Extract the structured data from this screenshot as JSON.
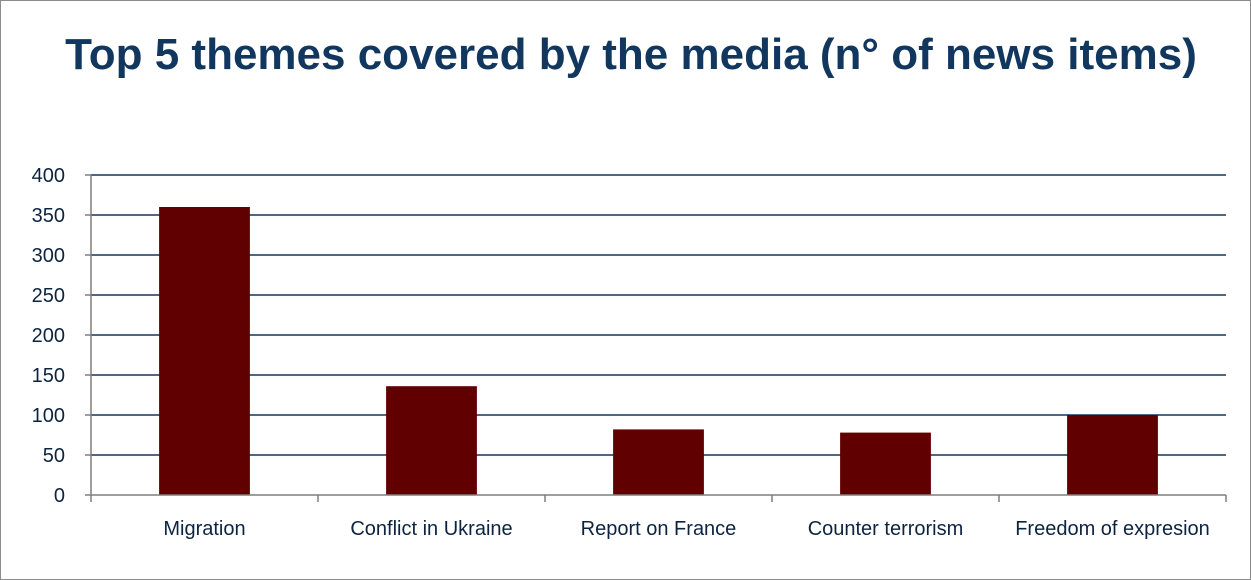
{
  "chart_data": {
    "type": "bar",
    "title": "Top 5 themes covered by the media (n° of news items)",
    "xlabel": "",
    "ylabel": "",
    "categories": [
      "Migration",
      "Conflict in Ukraine",
      "Report on France",
      "Counter terrorism",
      "Freedom of expresion"
    ],
    "values": [
      360,
      136,
      82,
      78,
      100
    ],
    "ylim": [
      0,
      400
    ],
    "yticks": [
      0,
      50,
      100,
      150,
      200,
      250,
      300,
      350,
      400
    ],
    "grid": true,
    "legend": "none",
    "colors": {
      "bar": "#600000",
      "grid": "#12375f",
      "title": "#12375f",
      "text": "#0d2440"
    }
  }
}
